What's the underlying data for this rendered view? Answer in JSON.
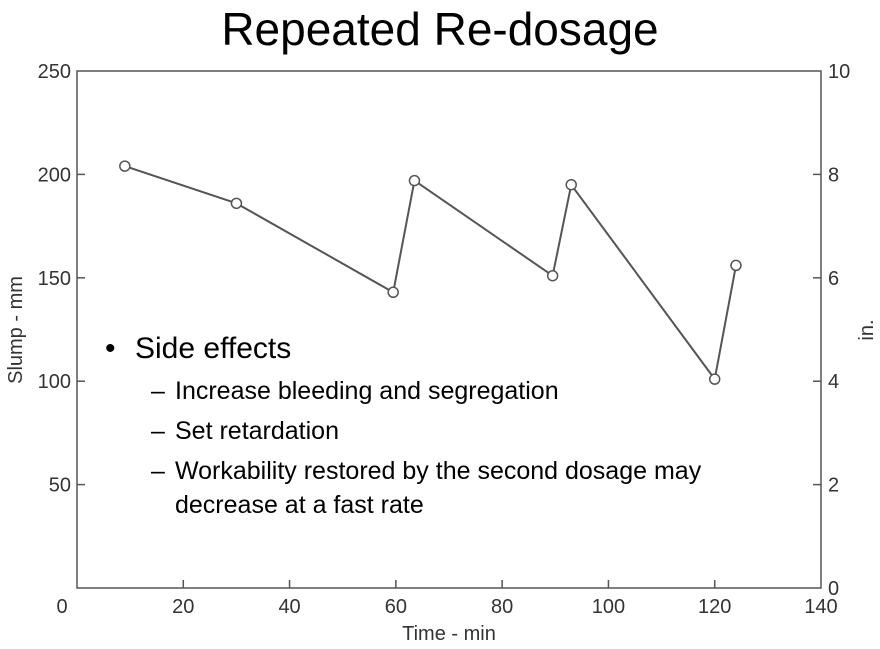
{
  "slide": {
    "title": "Repeated Re-dosage",
    "bullet": "Side effects",
    "sub_bullets": [
      "Increase bleeding and segregation",
      "Set retardation",
      "Workability restored by the second dosage may decrease at a fast rate"
    ]
  },
  "chart_data": {
    "type": "line",
    "title": "",
    "xlabel": "Time - min",
    "ylabel": "Slump - mm",
    "y2label": "in.",
    "xlim": [
      0,
      140
    ],
    "ylim": [
      0,
      250
    ],
    "y2lim": [
      0,
      10
    ],
    "x_ticks": [
      0,
      20,
      40,
      60,
      80,
      100,
      120,
      140
    ],
    "y_ticks": [
      50,
      100,
      150,
      200,
      250
    ],
    "y2_ticks": [
      0,
      2,
      4,
      6,
      8,
      10
    ],
    "grid": false,
    "series": [
      {
        "x": [
          9,
          30,
          59.5,
          63.5,
          89.5,
          93,
          120,
          124
        ],
        "y": [
          204,
          186,
          143,
          197,
          151,
          195,
          101,
          156
        ],
        "marker": "open-circle",
        "color": "#555555"
      }
    ]
  }
}
